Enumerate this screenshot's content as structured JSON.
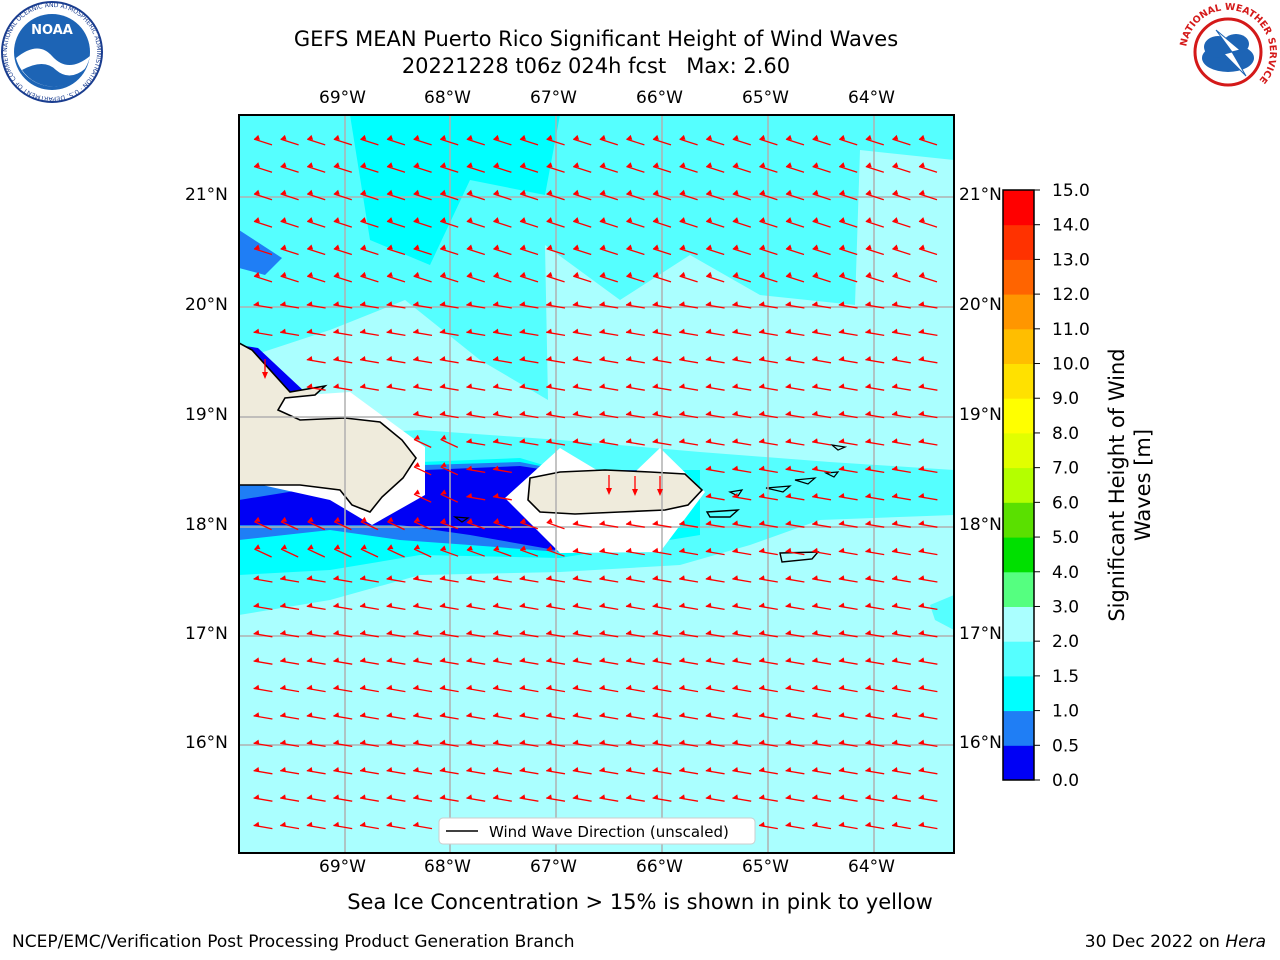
{
  "header": {
    "title_line1": "GEFS MEAN Puerto Rico Significant Height of Wind Waves",
    "title_line2": "20221228 t06z 024h fcst   Max: 2.60"
  },
  "logos": {
    "noaa_text": "NOAA",
    "noaa_ring": "NATIONAL OCEANIC AND ATMOSPHERIC ADMINISTRATION · U.S. DEPARTMENT OF COMMERCE",
    "nws_ring": "NATIONAL WEATHER SERVICE"
  },
  "map": {
    "lon_labels": [
      "69°W",
      "68°W",
      "67°W",
      "66°W",
      "65°W",
      "64°W"
    ],
    "lat_labels": [
      "21°N",
      "20°N",
      "19°N",
      "18°N",
      "17°N",
      "16°N"
    ],
    "legend_label": "Wind Wave Direction (unscaled)",
    "arrow_color": "#ff0000",
    "land_color": "#efebdc"
  },
  "colorbar": {
    "label": "Significant Height of Wind Waves [m]",
    "levels": [
      "0.0",
      "0.5",
      "1.0",
      "1.5",
      "2.0",
      "3.0",
      "4.0",
      "5.0",
      "6.0",
      "7.0",
      "8.0",
      "9.0",
      "10.0",
      "11.0",
      "12.0",
      "13.0",
      "14.0",
      "15.0"
    ],
    "colors": [
      "#0000f5",
      "#1f7ef5",
      "#00ffff",
      "#55ffff",
      "#aaffff",
      "#55ff80",
      "#00e000",
      "#5ae000",
      "#b4ff00",
      "#e1ff00",
      "#ffff00",
      "#ffe100",
      "#ffbe00",
      "#ff9600",
      "#ff6400",
      "#ff3200",
      "#ff0000"
    ]
  },
  "footer": {
    "sea_ice_note": "Sea Ice Concentration > 15% is shown in pink to yellow",
    "left": "NCEP/EMC/Verification Post Processing Product Generation Branch",
    "right_date": "30 Dec 2022 on ",
    "right_host": "Hera"
  }
}
